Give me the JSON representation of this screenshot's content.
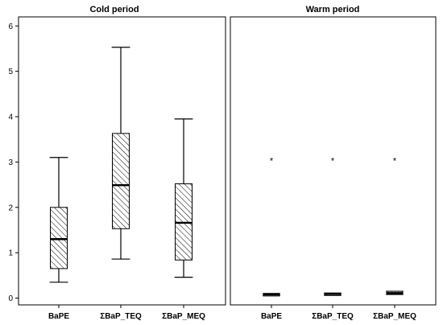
{
  "chart_data": [
    {
      "type": "boxplot",
      "title": "Cold period",
      "xlabel": "",
      "ylabel": "",
      "ylim": [
        -0.15,
        6.2
      ],
      "yticks": [
        "0",
        "1",
        "2",
        "3",
        "4",
        "5",
        "6"
      ],
      "grid": false,
      "categories": [
        "BaPE",
        "ΣBaP_TEQ",
        "ΣBaP_MEQ"
      ],
      "boxes": [
        {
          "min": 0.35,
          "q1": 0.65,
          "median": 1.3,
          "q3": 2.0,
          "max": 3.1,
          "outliers": []
        },
        {
          "min": 0.86,
          "q1": 1.53,
          "median": 2.49,
          "q3": 3.63,
          "max": 5.53,
          "outliers": []
        },
        {
          "min": 0.46,
          "q1": 0.84,
          "median": 1.66,
          "q3": 2.52,
          "max": 3.95,
          "outliers": []
        }
      ]
    },
    {
      "type": "boxplot",
      "title": "Warm period",
      "xlabel": "",
      "ylabel": "",
      "ylim": [
        -0.15,
        6.2
      ],
      "yticks": [],
      "grid": false,
      "categories": [
        "BaPE",
        "ΣBaP_TEQ",
        "ΣBaP_MEQ"
      ],
      "outlier_symbol": "*",
      "boxes": [
        {
          "min": 0.06,
          "q1": 0.06,
          "median": 0.08,
          "q3": 0.1,
          "max": 0.1,
          "outliers": [
            3.05
          ]
        },
        {
          "min": 0.07,
          "q1": 0.07,
          "median": 0.09,
          "q3": 0.11,
          "max": 0.11,
          "outliers": [
            3.05
          ]
        },
        {
          "min": 0.08,
          "q1": 0.08,
          "median": 0.11,
          "q3": 0.15,
          "max": 0.15,
          "outliers": [
            3.05
          ]
        }
      ]
    }
  ]
}
